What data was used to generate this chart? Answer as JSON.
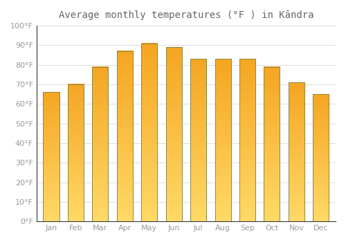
{
  "title": "Average monthly temperatures (°F ) in Kāndra",
  "months": [
    "Jan",
    "Feb",
    "Mar",
    "Apr",
    "May",
    "Jun",
    "Jul",
    "Aug",
    "Sep",
    "Oct",
    "Nov",
    "Dec"
  ],
  "values": [
    66,
    70,
    79,
    87,
    91,
    89,
    83,
    83,
    83,
    79,
    71,
    65
  ],
  "bar_color_top": "#F5A623",
  "bar_color_bottom": "#FFD966",
  "bar_edge_color": "#888844",
  "background_color": "#FFFFFF",
  "grid_color": "#DDDDDD",
  "ylim": [
    0,
    100
  ],
  "ytick_step": 10,
  "title_fontsize": 10,
  "tick_fontsize": 8,
  "tick_color": "#999999",
  "bar_width": 0.65,
  "title_color": "#666666",
  "spine_color": "#333333",
  "gradient_steps": 50
}
